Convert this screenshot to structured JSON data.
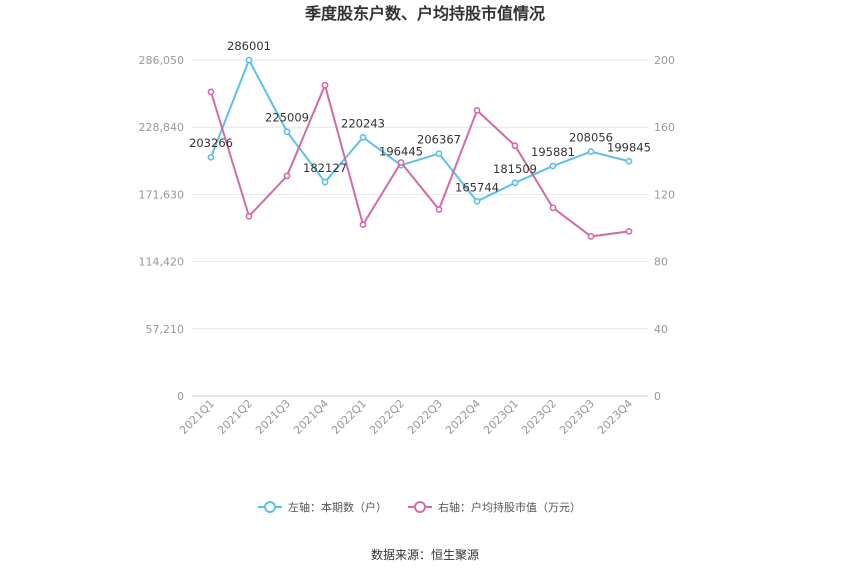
{
  "chart_data": {
    "type": "line",
    "title": "季度股东户数、户均持股市值情况",
    "categories": [
      "2021Q1",
      "2021Q2",
      "2021Q3",
      "2021Q4",
      "2022Q1",
      "2022Q2",
      "2022Q3",
      "2022Q4",
      "2023Q1",
      "2023Q2",
      "2023Q3",
      "2023Q4"
    ],
    "left_axis": {
      "ticks": [
        "0",
        "57,210",
        "114,420",
        "171,630",
        "228,840",
        "286,050"
      ],
      "ylim": [
        0,
        286050
      ]
    },
    "right_axis": {
      "ticks": [
        "0",
        "40",
        "80",
        "120",
        "160",
        "200"
      ],
      "ylim": [
        0,
        200
      ]
    },
    "series": [
      {
        "name": "左轴：本期数（户）",
        "axis": "left",
        "color": "#5bc0eb",
        "values": [
          203266,
          286001,
          225009,
          182127,
          220243,
          196445,
          206367,
          165744,
          181509,
          195881,
          208056,
          199845
        ],
        "labels": [
          "203266",
          "286001",
          "225009",
          "182127",
          "220243",
          "196445",
          "206367",
          "165744",
          "181509",
          "195881",
          "208056",
          "199845"
        ]
      },
      {
        "name": "右轴：户均持股市值（万元）",
        "axis": "right",
        "color": "#d36aa9",
        "values": [
          181,
          107,
          131,
          185,
          102,
          139,
          111,
          170,
          149,
          112,
          95,
          98
        ]
      }
    ],
    "grid": true,
    "legend_position": "bottom"
  },
  "source_text": "数据来源：恒生聚源"
}
